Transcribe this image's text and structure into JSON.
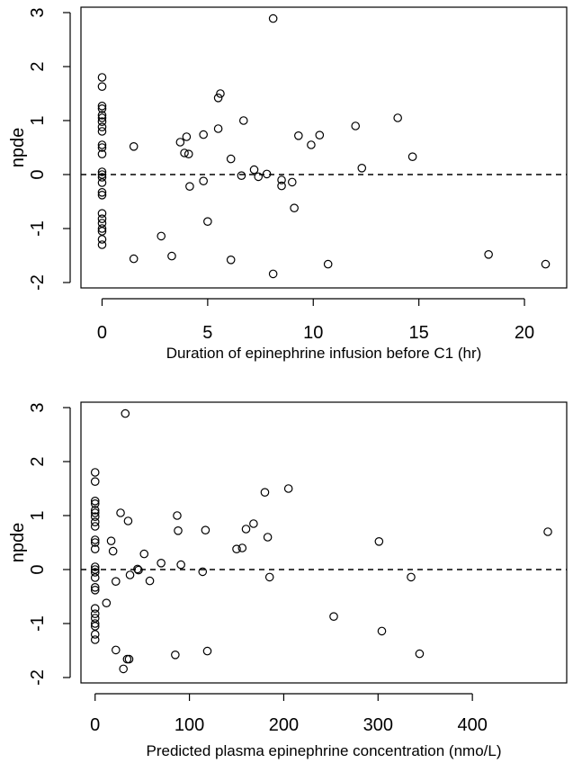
{
  "chart_data": [
    {
      "type": "scatter",
      "title": "",
      "xlabel": "Duration of epinephrine infusion before C1 (hr)",
      "ylabel": "npde",
      "xlim": [
        -1,
        22
      ],
      "ylim": [
        -2.1,
        3.1
      ],
      "xticks": [
        0,
        5,
        10,
        15,
        20
      ],
      "yticks": [
        -2,
        -1,
        0,
        1,
        2,
        3
      ],
      "reference_line": {
        "y": 0,
        "style": "dashed"
      },
      "grid": false,
      "marker": "open-circle",
      "points": [
        [
          0,
          1.8
        ],
        [
          0,
          1.63
        ],
        [
          0,
          1.27
        ],
        [
          0,
          1.22
        ],
        [
          0,
          1.1
        ],
        [
          0,
          1.05
        ],
        [
          0,
          0.98
        ],
        [
          0,
          0.88
        ],
        [
          0,
          0.8
        ],
        [
          0,
          0.55
        ],
        [
          0,
          0.5
        ],
        [
          0,
          0.38
        ],
        [
          0,
          0.05
        ],
        [
          0,
          0.0
        ],
        [
          0,
          -0.05
        ],
        [
          0,
          -0.15
        ],
        [
          0,
          -0.33
        ],
        [
          0,
          -0.38
        ],
        [
          0,
          -0.72
        ],
        [
          0,
          -0.82
        ],
        [
          0,
          -0.9
        ],
        [
          0,
          -1.0
        ],
        [
          0,
          -1.05
        ],
        [
          0,
          -1.2
        ],
        [
          0,
          -1.3
        ],
        [
          1.5,
          0.52
        ],
        [
          1.5,
          -1.56
        ],
        [
          2.8,
          -1.14
        ],
        [
          3.3,
          -1.51
        ],
        [
          3.7,
          0.6
        ],
        [
          3.9,
          0.4
        ],
        [
          4.0,
          0.7
        ],
        [
          4.1,
          0.38
        ],
        [
          4.15,
          -0.22
        ],
        [
          4.8,
          0.74
        ],
        [
          4.8,
          -0.12
        ],
        [
          5.0,
          -0.87
        ],
        [
          5.5,
          1.42
        ],
        [
          5.6,
          1.5
        ],
        [
          5.5,
          0.85
        ],
        [
          6.1,
          0.29
        ],
        [
          6.1,
          -1.58
        ],
        [
          6.6,
          -0.02
        ],
        [
          6.7,
          1.0
        ],
        [
          7.2,
          0.09
        ],
        [
          7.4,
          -0.04
        ],
        [
          7.8,
          0.01
        ],
        [
          8.1,
          2.89
        ],
        [
          8.1,
          -1.84
        ],
        [
          8.5,
          -0.21
        ],
        [
          8.5,
          -0.1
        ],
        [
          9.0,
          -0.14
        ],
        [
          9.1,
          -0.62
        ],
        [
          9.3,
          0.72
        ],
        [
          9.9,
          0.55
        ],
        [
          10.3,
          0.73
        ],
        [
          10.7,
          -1.66
        ],
        [
          12.0,
          0.9
        ],
        [
          12.3,
          0.12
        ],
        [
          14.0,
          1.05
        ],
        [
          14.7,
          0.33
        ],
        [
          18.3,
          -1.48
        ],
        [
          21.0,
          -1.66
        ]
      ]
    },
    {
      "type": "scatter",
      "title": "",
      "xlabel": "Predicted plasma epinephrine concentration (nmo/L)",
      "ylabel": "npde",
      "xlim": [
        -15,
        500
      ],
      "ylim": [
        -2.1,
        3.1
      ],
      "xticks": [
        0,
        100,
        200,
        300,
        400
      ],
      "yticks": [
        -2,
        -1,
        0,
        1,
        2,
        3
      ],
      "reference_line": {
        "y": 0,
        "style": "dashed"
      },
      "grid": false,
      "marker": "open-circle",
      "points": [
        [
          0,
          1.8
        ],
        [
          0,
          1.63
        ],
        [
          0,
          1.27
        ],
        [
          0,
          1.22
        ],
        [
          0,
          1.1
        ],
        [
          0,
          1.05
        ],
        [
          0,
          0.98
        ],
        [
          0,
          0.88
        ],
        [
          0,
          0.8
        ],
        [
          0,
          0.55
        ],
        [
          0,
          0.5
        ],
        [
          0,
          0.38
        ],
        [
          0,
          0.05
        ],
        [
          0,
          0.0
        ],
        [
          0,
          -0.05
        ],
        [
          0,
          -0.15
        ],
        [
          0,
          -0.33
        ],
        [
          0,
          -0.38
        ],
        [
          0,
          -0.72
        ],
        [
          0,
          -0.82
        ],
        [
          0,
          -0.9
        ],
        [
          0,
          -1.0
        ],
        [
          0,
          -1.05
        ],
        [
          0,
          -1.2
        ],
        [
          0,
          -1.3
        ],
        [
          12,
          -0.62
        ],
        [
          17,
          0.53
        ],
        [
          19,
          0.34
        ],
        [
          22,
          -0.22
        ],
        [
          22,
          -1.49
        ],
        [
          27,
          1.05
        ],
        [
          30,
          -1.84
        ],
        [
          32,
          2.89
        ],
        [
          34,
          -1.66
        ],
        [
          35,
          0.9
        ],
        [
          36,
          -1.66
        ],
        [
          37,
          -0.1
        ],
        [
          45,
          0.01
        ],
        [
          46,
          -0.01
        ],
        [
          52,
          0.29
        ],
        [
          58,
          -0.21
        ],
        [
          70,
          0.12
        ],
        [
          85,
          -1.58
        ],
        [
          87,
          1.0
        ],
        [
          88,
          0.72
        ],
        [
          91,
          0.09
        ],
        [
          114,
          -0.04
        ],
        [
          117,
          0.73
        ],
        [
          119,
          -1.51
        ],
        [
          150,
          0.38
        ],
        [
          156,
          0.4
        ],
        [
          160,
          0.75
        ],
        [
          168,
          0.85
        ],
        [
          180,
          1.43
        ],
        [
          183,
          0.6
        ],
        [
          185,
          -0.14
        ],
        [
          205,
          1.5
        ],
        [
          253,
          -0.87
        ],
        [
          301,
          0.52
        ],
        [
          304,
          -1.14
        ],
        [
          335,
          -0.14
        ],
        [
          344,
          -1.56
        ],
        [
          480,
          0.7
        ]
      ]
    }
  ]
}
